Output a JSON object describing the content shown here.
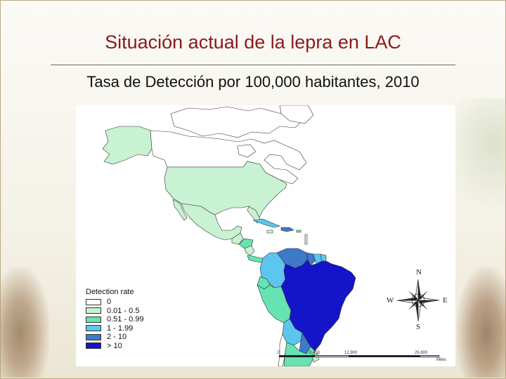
{
  "slide": {
    "title": "Situación actual de la lepra en LAC",
    "subtitle": "Tasa de Detección por 100,000 habitantes, 2010"
  },
  "legend": {
    "title": "Detection rate",
    "items": [
      {
        "label": "0",
        "color": "#ffffff"
      },
      {
        "label": "0.01 - 0.5",
        "color": "#c8f2d2"
      },
      {
        "label": "0.51 - 0.99",
        "color": "#66e3b2"
      },
      {
        "label": "1 - 1.99",
        "color": "#5cc6ee"
      },
      {
        "label": "2 - 10",
        "color": "#3f79c9"
      },
      {
        "label": "> 10",
        "color": "#1414c8"
      }
    ]
  },
  "compass": {
    "n": "N",
    "s": "S",
    "e": "E",
    "w": "W"
  },
  "scalebar": {
    "labels": [
      "0",
      "0.450",
      "12.900",
      "25.800"
    ],
    "unit": "Miles"
  }
}
